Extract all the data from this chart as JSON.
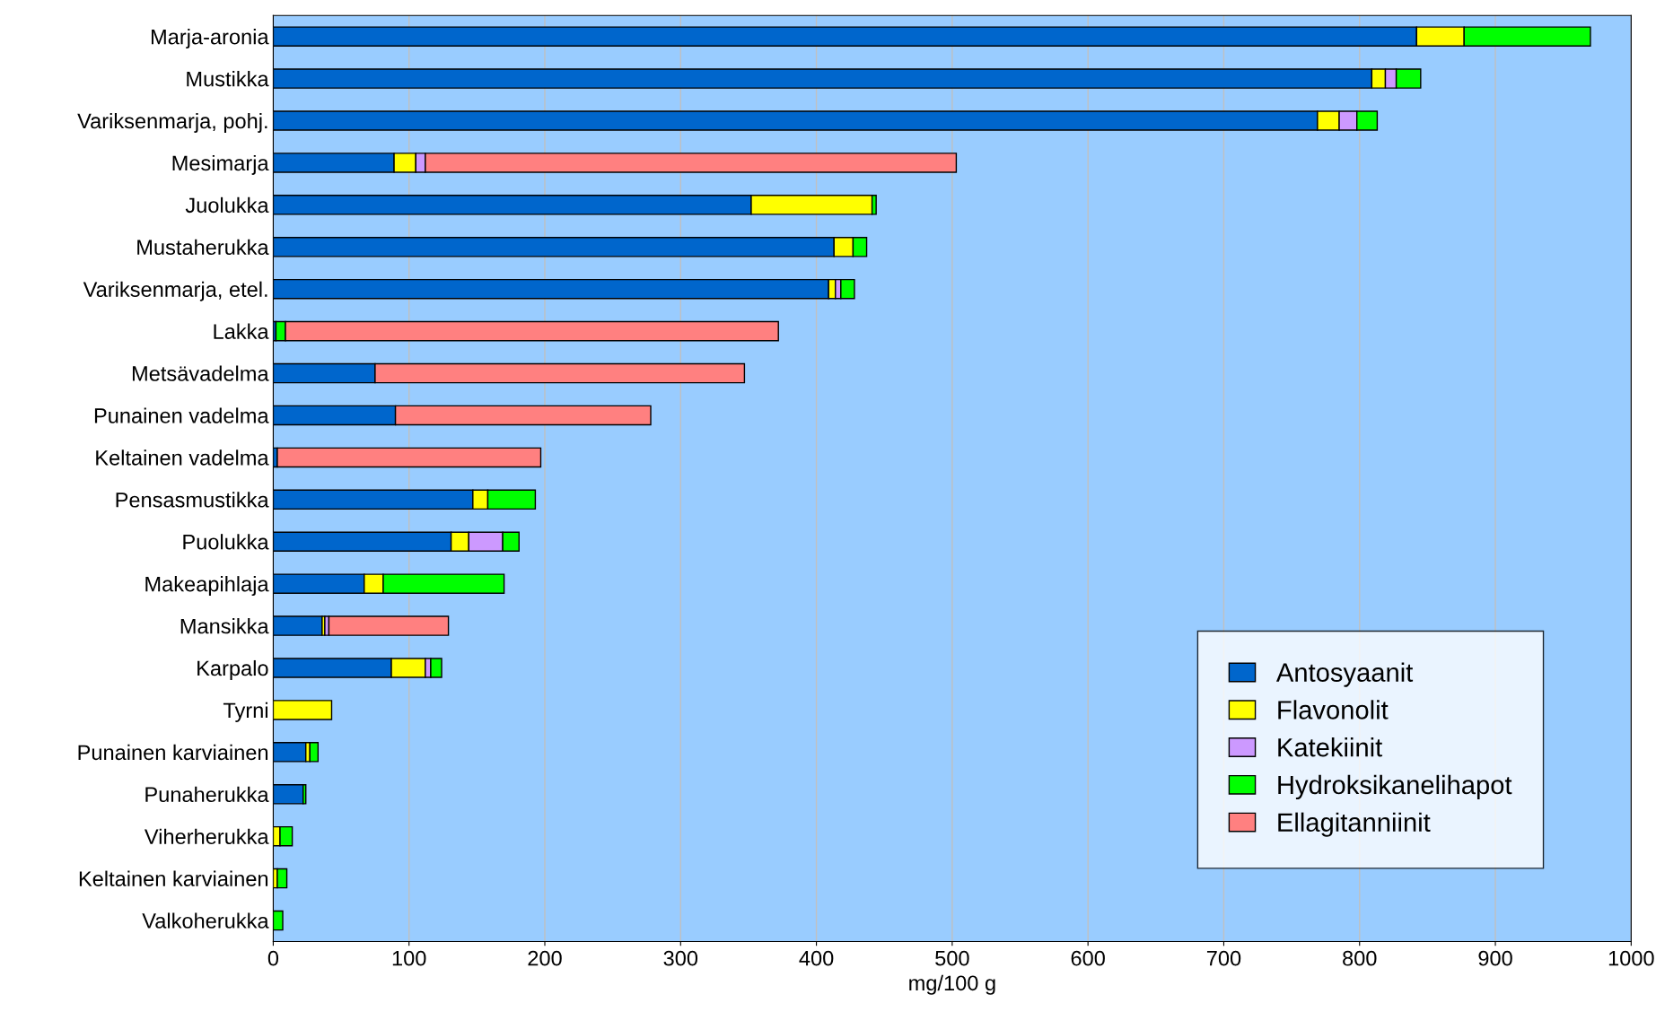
{
  "chart_data": {
    "type": "bar",
    "orientation": "horizontal",
    "stacked": true,
    "xlabel": "mg/100 g",
    "categories": [
      "Marja-aronia",
      "Mustikka",
      "Variksenmarja, pohj.",
      "Mesimarja",
      "Juolukka",
      "Mustaherukka",
      "Variksenmarja, etel.",
      "Lakka",
      "Metsävadelma",
      "Punainen vadelma",
      "Keltainen vadelma",
      "Pensasmustikka",
      "Puolukka",
      "Makeapihlaja",
      "Mansikka",
      "Karpalo",
      "Tyrni",
      "Punainen karviainen",
      "Punaherukka",
      "Viherherukka",
      "Keltainen karviainen",
      "Valkoherukka"
    ],
    "series": [
      {
        "name": "Antosyaanit",
        "color": "#0066cc",
        "values": [
          842,
          809,
          769,
          89,
          352,
          413,
          409,
          2,
          75,
          90,
          3,
          147,
          131,
          67,
          36,
          87,
          null,
          24,
          22,
          null,
          null,
          null
        ]
      },
      {
        "name": "Flavonolit",
        "color": "#ffff00",
        "values": [
          35,
          10,
          16,
          16,
          89,
          14,
          5,
          null,
          null,
          null,
          null,
          11,
          13,
          14,
          2,
          25,
          43,
          3,
          null,
          5,
          3,
          null
        ]
      },
      {
        "name": "Katekiinit",
        "color": "#cc99ff",
        "values": [
          null,
          8,
          13,
          7,
          null,
          null,
          4,
          null,
          null,
          null,
          null,
          null,
          25,
          null,
          3,
          4,
          null,
          null,
          null,
          null,
          null,
          null
        ]
      },
      {
        "name": "Hydroksikanelihapot",
        "color": "#00ff00",
        "values": [
          93,
          18,
          15,
          null,
          3,
          10,
          10,
          7,
          null,
          null,
          null,
          35,
          12,
          89,
          null,
          8,
          null,
          6,
          2,
          9,
          7,
          7
        ]
      },
      {
        "name": "Ellagitanniinit",
        "color": "#ff8080",
        "values": [
          null,
          null,
          null,
          391,
          null,
          null,
          null,
          363,
          272,
          188,
          194,
          null,
          null,
          null,
          88,
          null,
          null,
          null,
          null,
          null,
          null,
          null
        ]
      }
    ],
    "xlim": [
      0,
      1000
    ],
    "xticks": [
      0,
      100,
      200,
      300,
      400,
      500,
      600,
      700,
      800,
      900,
      1000
    ],
    "grid": "x",
    "legend": "bottom right"
  }
}
